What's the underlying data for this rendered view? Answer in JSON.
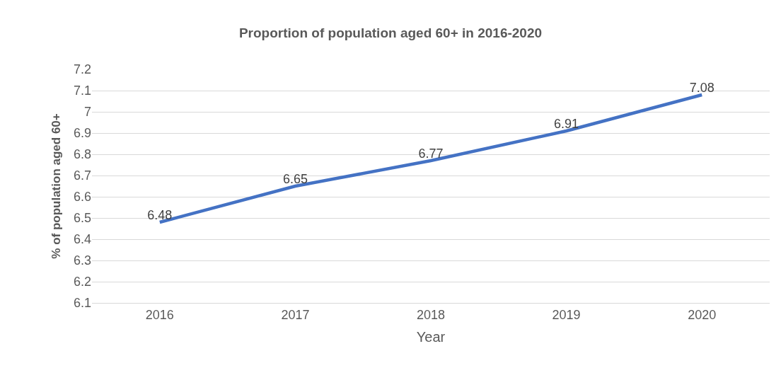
{
  "chart_data": {
    "type": "line",
    "title": "Proportion of population aged 60+ in 2016-2020",
    "xlabel": "Year",
    "ylabel": "% of population aged 60+",
    "categories": [
      "2016",
      "2017",
      "2018",
      "2019",
      "2020"
    ],
    "series": [
      {
        "color": "#4472c4",
        "values": [
          6.48,
          6.65,
          6.77,
          6.91,
          7.08
        ]
      }
    ],
    "ylim": [
      6.1,
      7.2
    ],
    "yticks": [
      6.1,
      6.2,
      6.3,
      6.4,
      6.5,
      6.6,
      6.7,
      6.8,
      6.9,
      7,
      7.1,
      7.2
    ],
    "grid": "y",
    "data_labels": true,
    "legend": false,
    "marker": "none",
    "line_style": "solid"
  }
}
